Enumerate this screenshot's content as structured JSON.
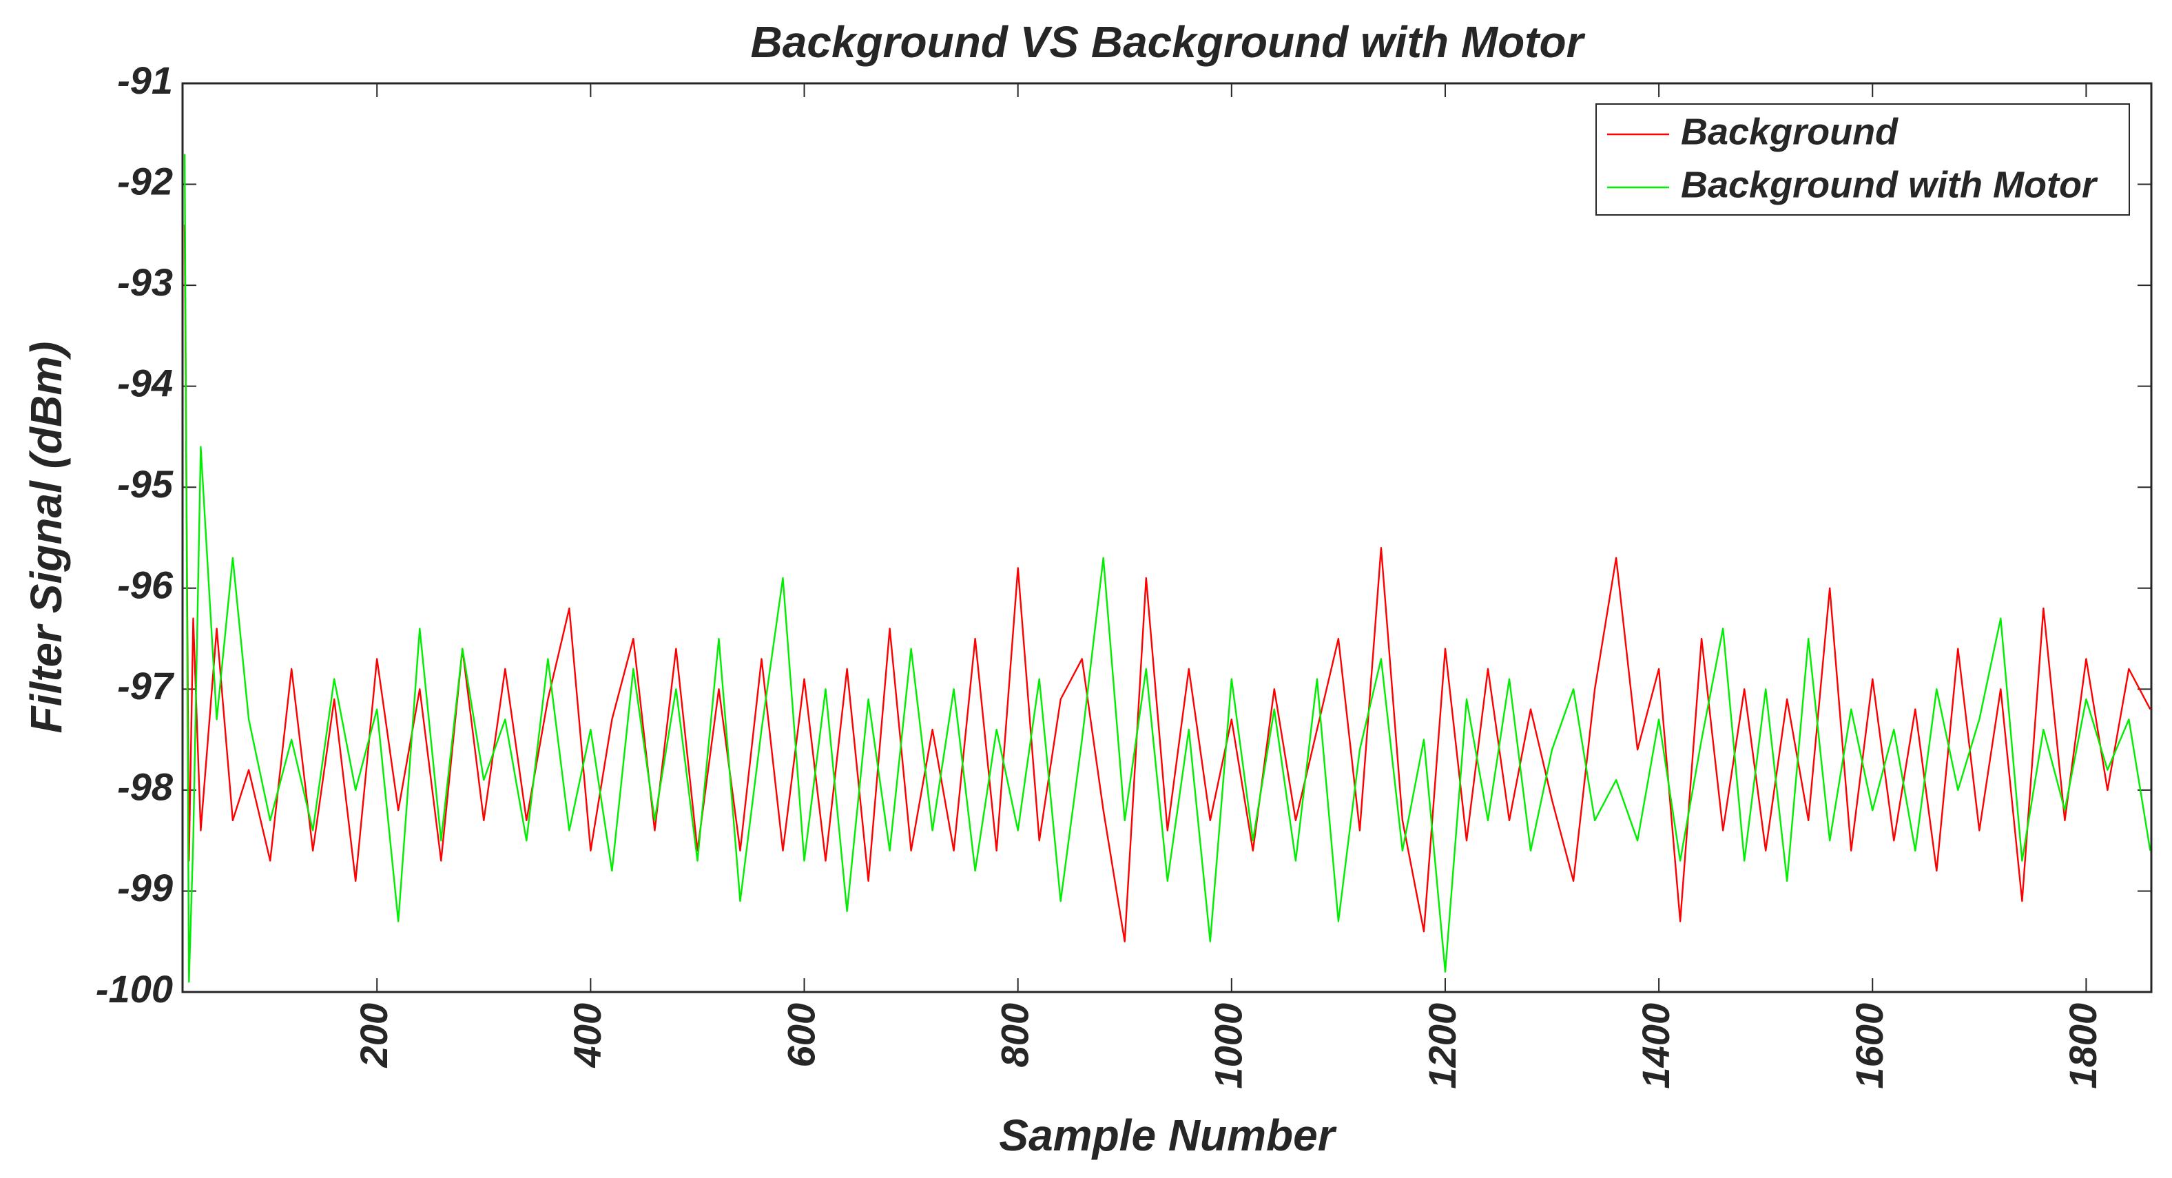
{
  "chart_data": {
    "type": "line",
    "title": "Background VS Background with Motor",
    "xlabel": "Sample Number",
    "ylabel": "Filter Signal (dBm)",
    "x": [
      20,
      24,
      28,
      35,
      50,
      65,
      80,
      100,
      120,
      140,
      160,
      180,
      200,
      220,
      240,
      260,
      280,
      300,
      320,
      340,
      360,
      380,
      400,
      420,
      440,
      460,
      480,
      500,
      520,
      540,
      560,
      580,
      600,
      620,
      640,
      660,
      680,
      700,
      720,
      740,
      760,
      780,
      800,
      820,
      840,
      860,
      880,
      900,
      920,
      940,
      960,
      980,
      1000,
      1020,
      1040,
      1060,
      1080,
      1100,
      1120,
      1140,
      1160,
      1180,
      1200,
      1220,
      1240,
      1260,
      1280,
      1300,
      1320,
      1340,
      1360,
      1380,
      1400,
      1420,
      1440,
      1460,
      1480,
      1500,
      1520,
      1540,
      1560,
      1580,
      1600,
      1620,
      1640,
      1660,
      1680,
      1700,
      1720,
      1740,
      1760,
      1780,
      1800,
      1820,
      1840,
      1860
    ],
    "series": [
      {
        "name": "Background",
        "color": "#ff0000",
        "values": [
          -92.4,
          -98.7,
          -96.3,
          -98.4,
          -96.4,
          -98.3,
          -97.8,
          -98.7,
          -96.8,
          -98.6,
          -97.1,
          -98.9,
          -96.7,
          -98.2,
          -97.0,
          -98.7,
          -96.6,
          -98.3,
          -96.8,
          -98.3,
          -97.1,
          -96.2,
          -98.6,
          -97.3,
          -96.5,
          -98.4,
          -96.6,
          -98.6,
          -97.0,
          -98.6,
          -96.7,
          -98.6,
          -96.9,
          -98.7,
          -96.8,
          -98.9,
          -96.4,
          -98.6,
          -97.4,
          -98.6,
          -96.5,
          -98.6,
          -95.8,
          -98.5,
          -97.1,
          -96.7,
          -98.2,
          -99.5,
          -95.9,
          -98.4,
          -96.8,
          -98.3,
          -97.3,
          -98.6,
          -97.0,
          -98.3,
          -97.4,
          -96.5,
          -98.4,
          -95.6,
          -98.3,
          -99.4,
          -96.6,
          -98.5,
          -96.8,
          -98.3,
          -97.2,
          -98.1,
          -98.9,
          -97.0,
          -95.7,
          -97.6,
          -96.8,
          -99.3,
          -96.5,
          -98.4,
          -97.0,
          -98.6,
          -97.1,
          -98.3,
          -96.0,
          -98.6,
          -96.9,
          -98.5,
          -97.2,
          -98.8,
          -96.6,
          -98.4,
          -97.0,
          -99.1,
          -96.2,
          -98.3,
          -96.7,
          -98.0,
          -96.8,
          -97.2
        ]
      },
      {
        "name": "Background with Motor",
        "color": "#00ee00",
        "values": [
          -91.7,
          -99.9,
          -98.5,
          -94.6,
          -97.3,
          -95.7,
          -97.3,
          -98.3,
          -97.5,
          -98.4,
          -96.9,
          -98.0,
          -97.2,
          -99.3,
          -96.4,
          -98.5,
          -96.6,
          -97.9,
          -97.3,
          -98.5,
          -96.7,
          -98.4,
          -97.4,
          -98.8,
          -96.8,
          -98.3,
          -97.0,
          -98.7,
          -96.5,
          -99.1,
          -97.4,
          -95.9,
          -98.7,
          -97.0,
          -99.2,
          -97.1,
          -98.6,
          -96.6,
          -98.4,
          -97.0,
          -98.8,
          -97.4,
          -98.4,
          -96.9,
          -99.1,
          -97.5,
          -95.7,
          -98.3,
          -96.8,
          -98.9,
          -97.4,
          -99.5,
          -96.9,
          -98.5,
          -97.2,
          -98.7,
          -96.9,
          -99.3,
          -97.6,
          -96.7,
          -98.6,
          -97.5,
          -99.8,
          -97.1,
          -98.3,
          -96.9,
          -98.6,
          -97.6,
          -97.0,
          -98.3,
          -97.9,
          -98.5,
          -97.3,
          -98.7,
          -97.5,
          -96.4,
          -98.7,
          -97.0,
          -98.9,
          -96.5,
          -98.5,
          -97.2,
          -98.2,
          -97.4,
          -98.6,
          -97.0,
          -98.0,
          -97.3,
          -96.3,
          -98.7,
          -97.4,
          -98.2,
          -97.1,
          -97.8,
          -97.3,
          -98.6
        ]
      }
    ],
    "xlim": [
      18,
      1861
    ],
    "ylim": [
      -100,
      -91
    ],
    "xticks": [
      200,
      400,
      600,
      800,
      1000,
      1200,
      1400,
      1600,
      1800
    ],
    "yticks": [
      -100,
      -99,
      -98,
      -97,
      -96,
      -95,
      -94,
      -93,
      -92,
      -91
    ],
    "legend": "upper-right"
  }
}
